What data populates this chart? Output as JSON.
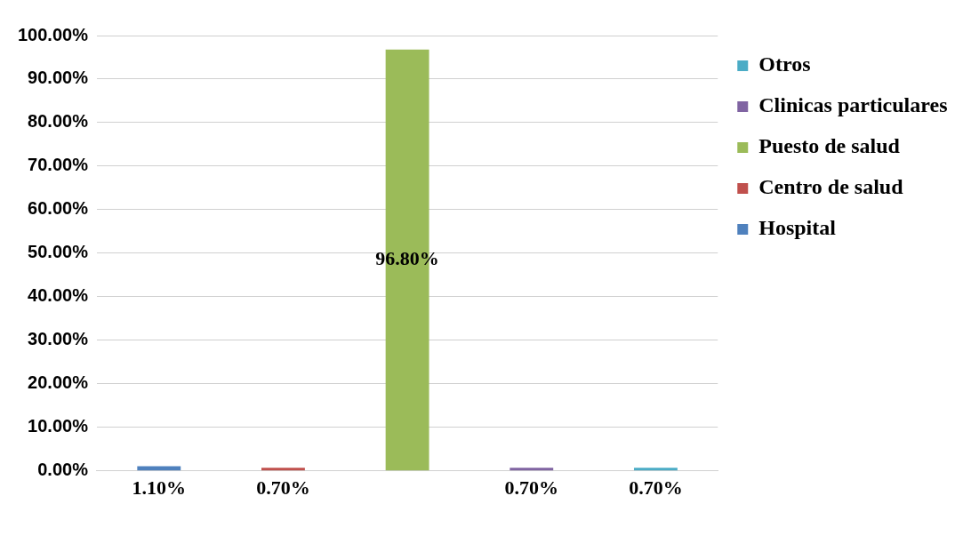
{
  "chart_data": {
    "type": "bar",
    "categories": [
      null
    ],
    "series": [
      {
        "name": "Hospital",
        "color": "#4f81bd",
        "values": [
          1.1
        ],
        "value_labels": [
          "1.10%"
        ]
      },
      {
        "name": "Centro de salud",
        "color": "#c0504d",
        "values": [
          0.7
        ],
        "value_labels": [
          "0.70%"
        ]
      },
      {
        "name": "Puesto de salud",
        "color": "#9bbb59",
        "values": [
          96.8
        ],
        "value_labels": [
          "96.80%"
        ]
      },
      {
        "name": "Clinicas particulares",
        "color": "#8064a2",
        "values": [
          0.7
        ],
        "value_labels": [
          "0.70%"
        ]
      },
      {
        "name": "Otros",
        "color": "#4bacc6",
        "values": [
          0.7
        ],
        "value_labels": [
          "0.70%"
        ]
      }
    ],
    "ylim": [
      0,
      100
    ],
    "yticks": [
      {
        "value": 0,
        "label": "0.00%"
      },
      {
        "value": 10,
        "label": "10.00%"
      },
      {
        "value": 20,
        "label": "20.00%"
      },
      {
        "value": 30,
        "label": "30.00%"
      },
      {
        "value": 40,
        "label": "40.00%"
      },
      {
        "value": 50,
        "label": "50.00%"
      },
      {
        "value": 60,
        "label": "60.00%"
      },
      {
        "value": 70,
        "label": "70.00%"
      },
      {
        "value": 80,
        "label": "80.00%"
      },
      {
        "value": 90,
        "label": "90.00%"
      },
      {
        "value": 100,
        "label": "100.00%"
      }
    ],
    "grid": "y",
    "legend": "top right"
  }
}
